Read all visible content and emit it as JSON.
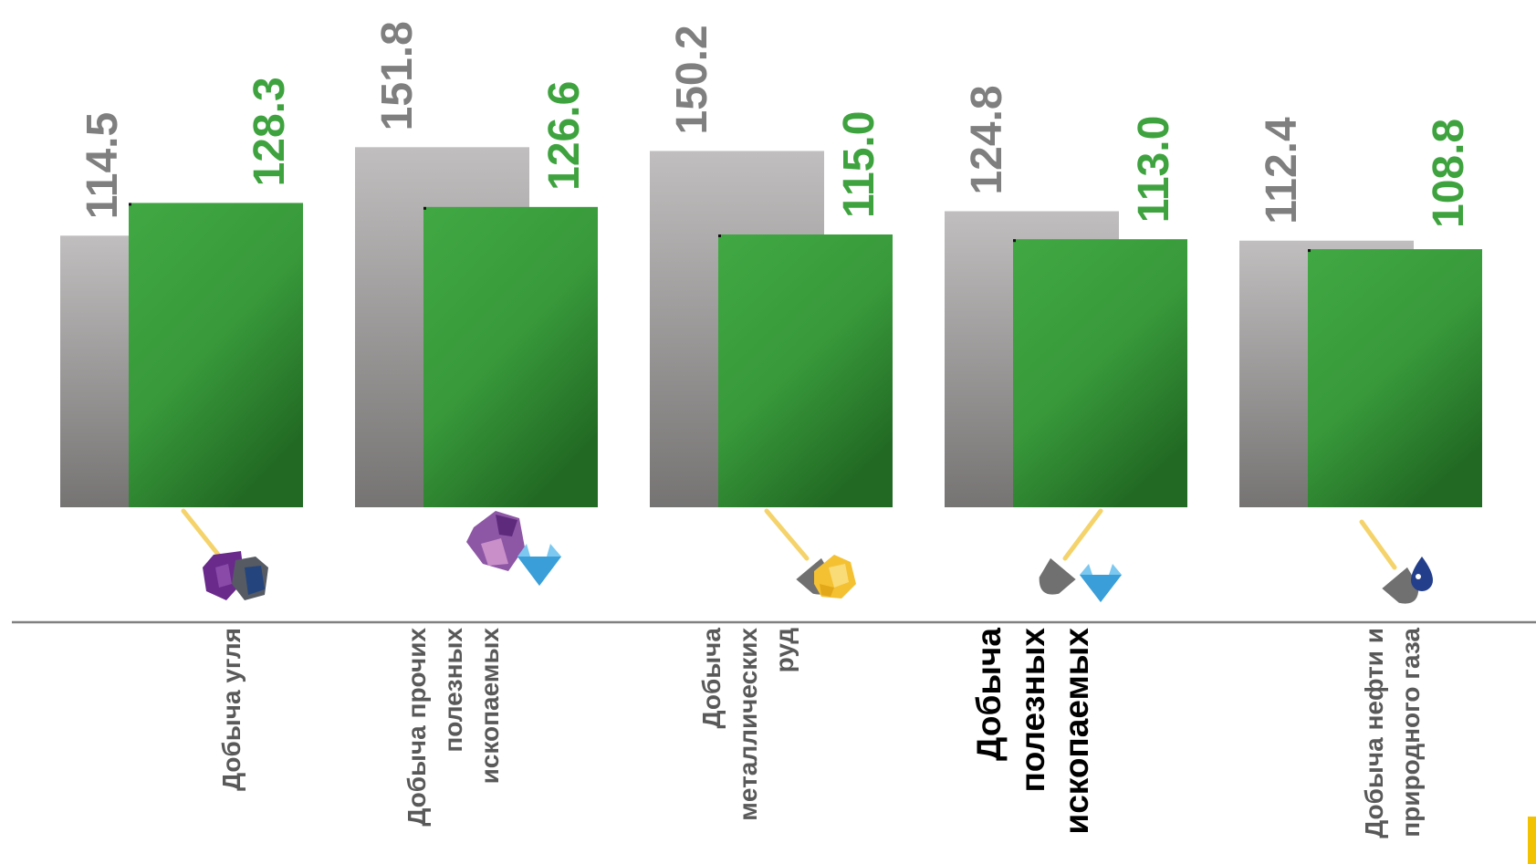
{
  "chart_data": {
    "type": "bar",
    "categories": [
      [
        "Добыча угля"
      ],
      [
        "Добыча прочих",
        "полезных",
        "ископаемых"
      ],
      [
        "Добыча",
        "металлических",
        "руд"
      ],
      [
        "Добыча",
        "полезных",
        "ископаемых"
      ],
      [
        "Добыча нефти и",
        "природного газа"
      ]
    ],
    "highlight_category_index": 3,
    "series": [
      {
        "values": [
          114.5,
          151.8,
          150.2,
          124.8,
          112.4
        ],
        "color": "#a8a6a6"
      },
      {
        "values": [
          128.3,
          126.6,
          115.0,
          113.0,
          108.8
        ],
        "color": "#3ea33e"
      }
    ],
    "value_labels": [
      [
        "114.5",
        "151.8",
        "150.2",
        "124.8",
        "112.4"
      ],
      [
        "128.3",
        "126.6",
        "115.0",
        "113.0",
        "108.8"
      ]
    ],
    "icons": [
      "shovel-coal-icon",
      "minerals-gem-icon",
      "shovel-gold-ore-icon",
      "shovel-gem-icon",
      "shovel-oil-drop-icon"
    ],
    "ylim": [
      0,
      200
    ],
    "grid": false,
    "legend": "none",
    "title": "",
    "xlabel": "",
    "ylabel": ""
  },
  "colors": {
    "grey_label": "#7f7f7f",
    "green_label": "#3ea33e",
    "axis": "#808080",
    "accent": "#f2c200"
  }
}
